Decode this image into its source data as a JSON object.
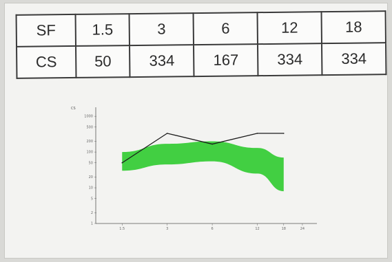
{
  "table": {
    "rows": [
      {
        "header": "SF",
        "cells": [
          "1.5",
          "3",
          "6",
          "12",
          "18"
        ]
      },
      {
        "header": "CS",
        "cells": [
          "50",
          "334",
          "167",
          "334",
          "334"
        ]
      }
    ]
  },
  "chart_data": {
    "type": "line",
    "title": "",
    "xlabel": "",
    "ylabel": "CS",
    "x_scale": "log",
    "y_scale": "log",
    "x_ticks": [
      "1.5",
      "3",
      "6",
      "12",
      "18",
      "24"
    ],
    "y_ticks": [
      "1000",
      "500",
      "200",
      "100",
      "50",
      "20",
      "10",
      "5",
      "2",
      "1"
    ],
    "xlim": [
      1,
      30
    ],
    "ylim": [
      1,
      1500
    ],
    "series": [
      {
        "values": [
          {
            "x": 1.5,
            "y": 50
          },
          {
            "x": 3,
            "y": 334
          },
          {
            "x": 6,
            "y": 167
          },
          {
            "x": 12,
            "y": 334
          },
          {
            "x": 18,
            "y": 334
          }
        ],
        "color": "#1a1a1a"
      }
    ],
    "normal_band": {
      "color": "#33cc33",
      "upper": [
        {
          "x": 1.5,
          "y": 100
        },
        {
          "x": 3,
          "y": 170
        },
        {
          "x": 6,
          "y": 200
        },
        {
          "x": 12,
          "y": 130
        },
        {
          "x": 18,
          "y": 70
        }
      ],
      "lower": [
        {
          "x": 1.5,
          "y": 30
        },
        {
          "x": 3,
          "y": 45
        },
        {
          "x": 6,
          "y": 55
        },
        {
          "x": 12,
          "y": 25
        },
        {
          "x": 18,
          "y": 8
        }
      ]
    },
    "grid": false,
    "legend": "none"
  }
}
